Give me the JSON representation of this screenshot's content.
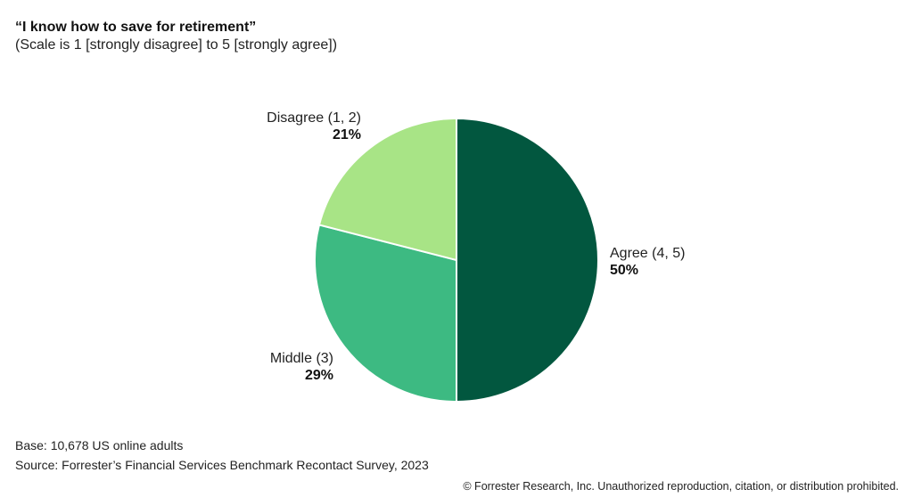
{
  "header": {
    "title": "“I know how to save for retirement”",
    "subtitle": "(Scale is 1 [strongly disagree] to 5 [strongly agree])"
  },
  "labels": {
    "agree": {
      "name": "Agree (4, 5)",
      "pct": "50%"
    },
    "middle": {
      "name": "Middle (3)",
      "pct": "29%"
    },
    "disagree": {
      "name": "Disagree (1, 2)",
      "pct": "21%"
    }
  },
  "footer": {
    "base": "Base: 10,678 US online adults",
    "source": "Source: Forrester’s Financial Services Benchmark Recontact Survey, 2023",
    "copyright": "© Forrester Research, Inc. Unauthorized reproduction, citation, or distribution prohibited."
  },
  "colors": {
    "agree": "#02573F",
    "middle": "#3DBA82",
    "disagree": "#A8E486"
  },
  "chart_data": {
    "type": "pie",
    "title": "“I know how to save for retirement”",
    "subtitle": "(Scale is 1 [strongly disagree] to 5 [strongly agree])",
    "categories": [
      "Agree (4, 5)",
      "Middle (3)",
      "Disagree (1, 2)"
    ],
    "values": [
      50,
      29,
      21
    ],
    "unit": "%",
    "colors": [
      "#02573F",
      "#3DBA82",
      "#A8E486"
    ],
    "start_angle": "12 o'clock, clockwise",
    "legend": "none (direct labels)",
    "notes": [
      "Base: 10,678 US online adults",
      "Source: Forrester’s Financial Services Benchmark Recontact Survey, 2023"
    ]
  }
}
